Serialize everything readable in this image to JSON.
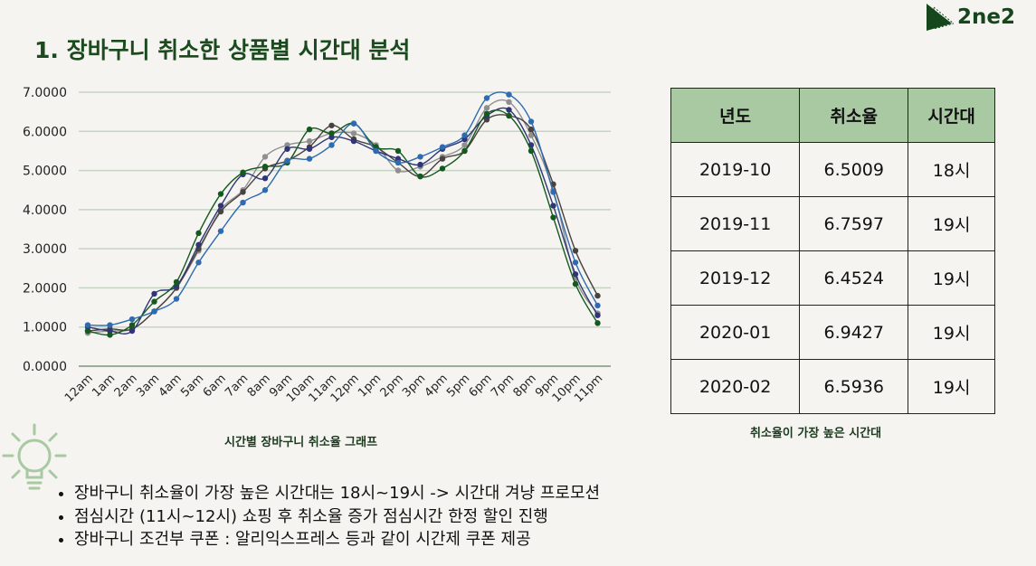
{
  "title": "1.  장바구니 취소한 상품별 시간대 분석",
  "logo": "2ne2",
  "chart_data": {
    "type": "line",
    "title": "시간별 장바구니 취소율 그래프",
    "x": [
      "12am",
      "1am",
      "2am",
      "3am",
      "4am",
      "5am",
      "6am",
      "7am",
      "8am",
      "9am",
      "10am",
      "11am",
      "12pm",
      "1pm",
      "2pm",
      "3pm",
      "4pm",
      "5pm",
      "6pm",
      "7pm",
      "8pm",
      "9pm",
      "10pm",
      "11pm"
    ],
    "yticks": [
      "0.0000",
      "1.0000",
      "2.0000",
      "3.0000",
      "4.0000",
      "5.0000",
      "6.0000",
      "7.0000"
    ],
    "ylim": [
      0,
      7
    ],
    "grid": true,
    "series": [
      {
        "color": "#8f8f8f",
        "values": [
          0.85,
          0.9,
          0.95,
          1.4,
          2.0,
          2.95,
          4.0,
          4.5,
          5.35,
          5.65,
          5.75,
          5.95,
          5.95,
          5.65,
          5.0,
          5.1,
          5.35,
          5.65,
          6.6,
          6.75,
          5.9,
          4.5,
          2.25,
          1.35
        ]
      },
      {
        "color": "#4a423f",
        "values": [
          0.9,
          0.95,
          0.95,
          1.4,
          2.0,
          3.0,
          3.95,
          4.45,
          5.05,
          5.25,
          5.6,
          6.15,
          5.8,
          5.6,
          5.2,
          4.85,
          5.3,
          5.5,
          6.3,
          6.4,
          6.05,
          4.65,
          2.95,
          1.8
        ]
      },
      {
        "color": "#2f3677",
        "values": [
          1.0,
          0.9,
          0.9,
          1.85,
          2.05,
          3.1,
          4.1,
          4.9,
          4.8,
          5.55,
          5.55,
          5.85,
          5.75,
          5.5,
          5.3,
          5.15,
          5.55,
          5.8,
          6.4,
          6.55,
          5.65,
          4.1,
          2.35,
          1.3
        ]
      },
      {
        "color": "#14591d",
        "values": [
          0.9,
          0.8,
          1.05,
          1.65,
          2.15,
          3.4,
          4.4,
          4.95,
          5.1,
          5.2,
          6.05,
          5.95,
          6.2,
          5.6,
          5.5,
          4.85,
          5.05,
          5.5,
          6.45,
          6.4,
          5.5,
          3.8,
          2.1,
          1.1
        ]
      },
      {
        "color": "#2e6bb0",
        "values": [
          1.05,
          1.05,
          1.2,
          1.4,
          1.72,
          2.65,
          3.45,
          4.18,
          4.5,
          5.25,
          5.3,
          5.65,
          6.2,
          5.5,
          5.2,
          5.35,
          5.6,
          5.9,
          6.85,
          6.94,
          6.25,
          4.45,
          2.65,
          1.55
        ]
      }
    ]
  },
  "table": {
    "caption": "취소율이 가장 높은 시간대",
    "headers": [
      "년도",
      "취소율",
      "시간대"
    ],
    "rows": [
      [
        "2019-10",
        "6.5009",
        "18시"
      ],
      [
        "2019-11",
        "6.7597",
        "19시"
      ],
      [
        "2019-12",
        "6.4524",
        "19시"
      ],
      [
        "2020-01",
        "6.9427",
        "19시"
      ],
      [
        "2020-02",
        "6.5936",
        "19시"
      ]
    ]
  },
  "bullets": [
    "장바구니 취소율이 가장 높은 시간대는 18시~19시 -> 시간대 겨냥 프로모션",
    "점심시간 (11시~12시) 쇼핑 후 취소율 증가 점심시간 한정 할인 진행",
    "장바구니 조건부 쿠폰 : 알리익스프레스 등과 같이 시간제 쿠폰 제공"
  ]
}
